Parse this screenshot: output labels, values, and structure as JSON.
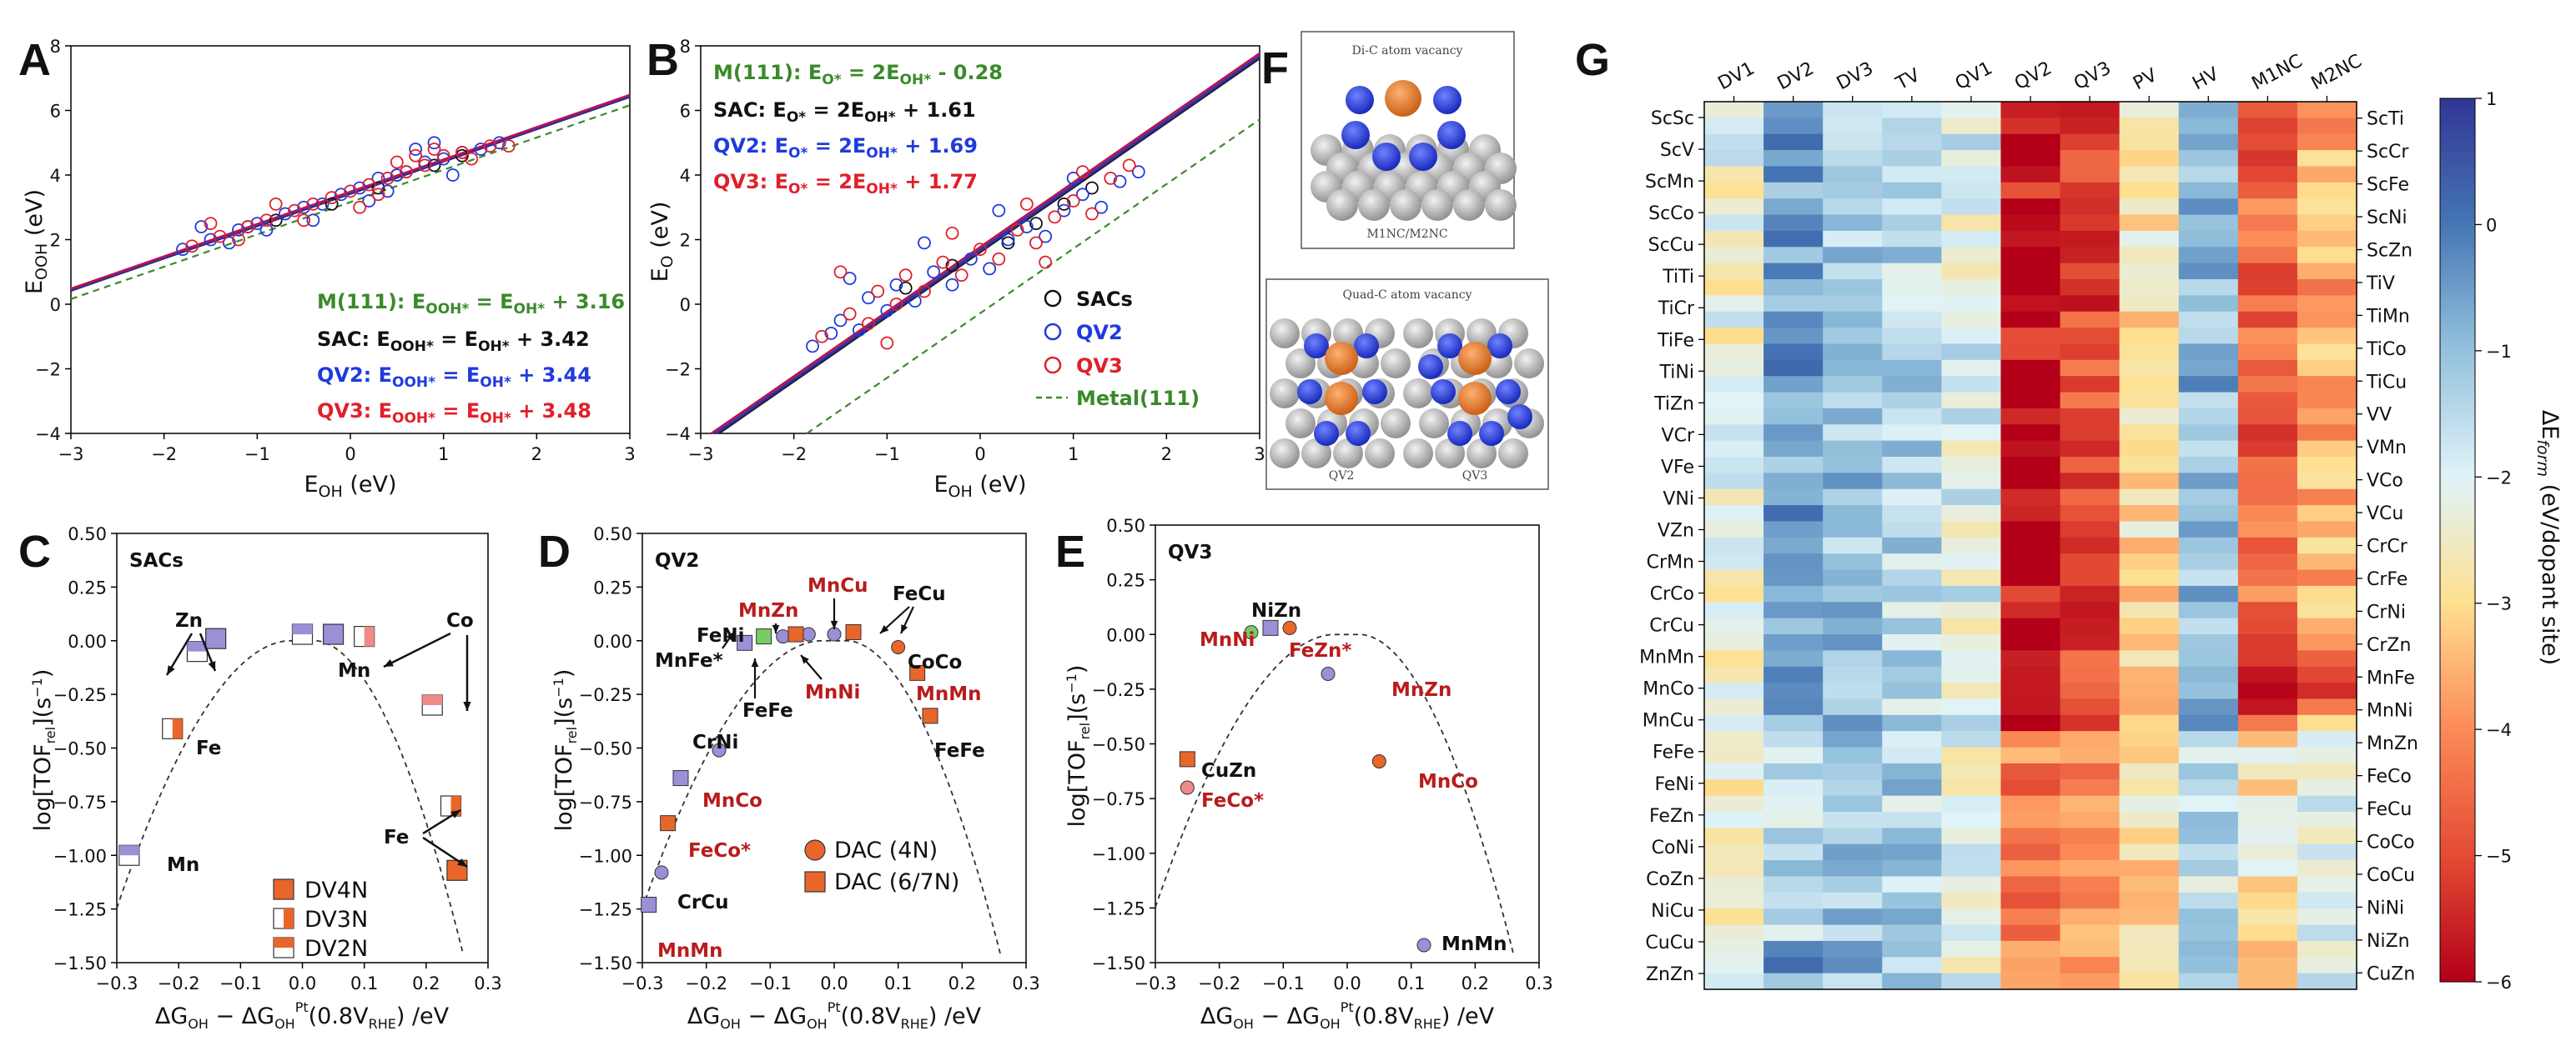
{
  "panel_labels": {
    "A": "A",
    "B": "B",
    "C": "C",
    "D": "D",
    "E": "E",
    "F": "F",
    "G": "G"
  },
  "colors": {
    "sac": "#111111",
    "qv2": "#1f3bdc",
    "qv3": "#e0202a",
    "metal": "#3a8a2a",
    "line_sac": "#222244",
    "line_qv2": "#3030b0",
    "line_qv3": "#c0104a",
    "purple": "#9b8fd6",
    "orange": "#e8662a"
  },
  "panelA": {
    "xlabel": "E_OH (eV)",
    "ylabel": "E_OOH (eV)",
    "xticks": [
      "−3",
      "−2",
      "−1",
      "0",
      "1",
      "2",
      "3"
    ],
    "yticks": [
      "−4",
      "−2",
      "0",
      "2",
      "4",
      "6",
      "8"
    ],
    "eq_metal": "M(111): E",
    "eq_metal_sub": "OOH*",
    "eq_metal_rest": " = E",
    "eq_metal_sub2": "OH*",
    "eq_metal_tail": " + 3.16",
    "eq_sac_head": "SAC: E",
    "eq_sac_tail": " + 3.42",
    "eq_qv2_head": "QV2: E",
    "eq_qv2_tail": " + 3.44",
    "eq_qv3_head": "QV3: E",
    "eq_qv3_tail": " + 3.48"
  },
  "panelB": {
    "xlabel": "E_OH (eV)",
    "ylabel": "E_O (eV)",
    "xticks": [
      "−3",
      "−2",
      "−1",
      "0",
      "1",
      "2",
      "3"
    ],
    "yticks": [
      "−4",
      "−2",
      "0",
      "2",
      "4",
      "6",
      "8"
    ],
    "eq_metal_head": "M(111): E",
    "eq_metal_tail": " - 0.28",
    "eq_sac_head": "SAC: E",
    "eq_sac_tail": " + 1.61",
    "eq_qv2_head": "QV2: E",
    "eq_qv2_tail": " + 1.69",
    "eq_qv3_head": "QV3: E",
    "eq_qv3_tail": " + 1.77",
    "legend": [
      "SACs",
      "QV2",
      "QV3",
      "Metal(111)"
    ]
  },
  "panelC": {
    "title": "SACs",
    "xlabel": "ΔG_OH − ΔG_OH^Pt(0.8V_RHE) /eV",
    "ylabel": "log[TOF_rel](s⁻¹)",
    "xticks": [
      "−0.3",
      "−0.2",
      "−0.1",
      "0.0",
      "0.1",
      "0.2",
      "0.3"
    ],
    "yticks": [
      "0.50",
      "0.25",
      "0.00",
      "−0.25",
      "−0.50",
      "−0.75",
      "−1.00",
      "−1.25",
      "−1.50"
    ],
    "labels": {
      "zn": "Zn",
      "co": "Co",
      "mn_top": "Mn",
      "fe_left": "Fe",
      "mn_left": "Mn",
      "fe_right": "Fe"
    },
    "legend": [
      "DV4N",
      "DV3N",
      "DV2N"
    ]
  },
  "panelD": {
    "title": "QV2",
    "xlabel": "ΔG_OH − ΔG_OH^Pt(0.8V_RHE) /eV",
    "ylabel": "log[TOF_rel](s⁻¹)",
    "xticks": [
      "−0.3",
      "−0.2",
      "−0.1",
      "0.0",
      "0.1",
      "0.2",
      "0.3"
    ],
    "yticks": [
      "0.50",
      "0.25",
      "0.00",
      "−0.25",
      "−0.50",
      "−0.75",
      "−1.00",
      "−1.25",
      "−1.50"
    ],
    "labels": {
      "mncu": "MnCu",
      "fecu": "FeCu",
      "mnzn": "MnZn",
      "feni": "FeNi",
      "mnfe": "MnFe*",
      "feFe_low": "FeFe",
      "mnni": "MnNi",
      "coco": "CoCo",
      "mnmn_r": "MnMn",
      "fefe_r": "FeFe",
      "crni": "CrNi",
      "mnco": "MnCo",
      "feco": "FeCo*",
      "crcu": "CrCu",
      "mnmn_l": "MnMn"
    },
    "legend": [
      "DAC (4N)",
      "DAC (6/7N)"
    ]
  },
  "panelE": {
    "title": "QV3",
    "xlabel": "ΔG_OH − ΔG_OH^Pt(0.8V_RHE) /eV",
    "ylabel": "log[TOF_rel](s⁻¹)",
    "xticks": [
      "−0.3",
      "−0.2",
      "−0.1",
      "0.0",
      "0.1",
      "0.2",
      "0.3"
    ],
    "yticks": [
      "0.50",
      "0.25",
      "0.00",
      "−0.25",
      "−0.50",
      "−0.75",
      "−1.00",
      "−1.25",
      "−1.50"
    ],
    "labels": {
      "nizn": "NiZn",
      "mnni": "MnNi",
      "fezn": "FeZn*",
      "mnzn": "MnZn",
      "cuzn": "CuZn",
      "mnco": "MnCo",
      "feco": "FeCo*",
      "mnmn": "MnMn"
    }
  },
  "panelF": {
    "top_title": "Di-C atom vacancy",
    "top_caption": "M1NC/M2NC",
    "bot_title": "Quad-C atom vacancy",
    "cap_qv2": "QV2",
    "cap_qv3": "QV3"
  },
  "chart_data": [
    {
      "type": "scatter",
      "panel": "A",
      "xlabel": "E_OH (eV)",
      "ylabel": "E_OOH (eV)",
      "xlim": [
        -3,
        3
      ],
      "ylim": [
        -4,
        8
      ],
      "fits": [
        {
          "name": "M(111)",
          "slope": 1,
          "intercept": 3.16
        },
        {
          "name": "SAC",
          "slope": 1,
          "intercept": 3.42
        },
        {
          "name": "QV2",
          "slope": 1,
          "intercept": 3.44
        },
        {
          "name": "QV3",
          "slope": 1,
          "intercept": 3.48
        }
      ],
      "series": [
        {
          "name": "SAC",
          "points": [
            [
              -0.2,
              3.1
            ],
            [
              0.3,
              3.6
            ],
            [
              -0.8,
              2.6
            ],
            [
              0.9,
              4.3
            ],
            [
              1.2,
              4.6
            ],
            [
              -1.1,
              2.4
            ],
            [
              0.5,
              4.0
            ]
          ]
        },
        {
          "name": "QV2",
          "points": [
            [
              -1.8,
              1.7
            ],
            [
              -1.5,
              2.0
            ],
            [
              -1.2,
              2.3
            ],
            [
              -1.0,
              2.5
            ],
            [
              -0.7,
              2.8
            ],
            [
              -0.5,
              3.0
            ],
            [
              -0.3,
              3.1
            ],
            [
              -0.1,
              3.4
            ],
            [
              0.1,
              3.6
            ],
            [
              0.3,
              3.9
            ],
            [
              0.5,
              4.0
            ],
            [
              0.6,
              4.1
            ],
            [
              0.8,
              4.4
            ],
            [
              1.0,
              4.5
            ],
            [
              1.2,
              4.7
            ],
            [
              1.4,
              4.8
            ],
            [
              1.6,
              5.0
            ],
            [
              -1.6,
              2.4
            ],
            [
              -0.9,
              2.3
            ],
            [
              0.2,
              3.2
            ],
            [
              0.7,
              4.8
            ],
            [
              1.1,
              4.0
            ],
            [
              -0.4,
              2.6
            ],
            [
              -1.3,
              1.9
            ],
            [
              0.9,
              5.0
            ],
            [
              0.4,
              3.5
            ]
          ]
        },
        {
          "name": "QV3",
          "points": [
            [
              -1.7,
              1.8
            ],
            [
              -1.4,
              2.1
            ],
            [
              -1.1,
              2.4
            ],
            [
              -0.9,
              2.6
            ],
            [
              -0.6,
              2.9
            ],
            [
              -0.4,
              3.1
            ],
            [
              -0.2,
              3.3
            ],
            [
              0.0,
              3.5
            ],
            [
              0.2,
              3.7
            ],
            [
              0.4,
              3.9
            ],
            [
              0.6,
              4.1
            ],
            [
              0.8,
              4.3
            ],
            [
              1.0,
              4.6
            ],
            [
              1.2,
              4.7
            ],
            [
              1.5,
              4.9
            ],
            [
              1.7,
              4.9
            ],
            [
              -1.2,
              2.0
            ],
            [
              -0.5,
              2.6
            ],
            [
              0.1,
              3.0
            ],
            [
              0.5,
              4.4
            ],
            [
              0.9,
              4.8
            ],
            [
              -0.8,
              3.1
            ],
            [
              0.3,
              3.4
            ],
            [
              1.3,
              4.5
            ],
            [
              -1.5,
              2.5
            ],
            [
              0.7,
              4.6
            ]
          ]
        }
      ]
    },
    {
      "type": "scatter",
      "panel": "B",
      "xlabel": "E_OH (eV)",
      "ylabel": "E_O (eV)",
      "xlim": [
        -3,
        3
      ],
      "ylim": [
        -4,
        8
      ],
      "fits": [
        {
          "name": "M(111)",
          "slope": 2,
          "intercept": -0.28
        },
        {
          "name": "SAC",
          "slope": 2,
          "intercept": 1.61
        },
        {
          "name": "QV2",
          "slope": 2,
          "intercept": 1.69
        },
        {
          "name": "QV3",
          "slope": 2,
          "intercept": 1.77
        }
      ],
      "series": [
        {
          "name": "SACs",
          "points": [
            [
              -0.8,
              0.5
            ],
            [
              0.3,
              1.9
            ],
            [
              0.9,
              3.1
            ],
            [
              1.2,
              3.6
            ],
            [
              -0.3,
              1.2
            ],
            [
              0.6,
              2.5
            ]
          ]
        },
        {
          "name": "QV2",
          "points": [
            [
              -1.8,
              -1.3
            ],
            [
              -1.6,
              -0.9
            ],
            [
              -1.5,
              -0.5
            ],
            [
              -1.3,
              -0.8
            ],
            [
              -1.2,
              0.2
            ],
            [
              -1.0,
              -0.2
            ],
            [
              -0.9,
              0.6
            ],
            [
              -0.7,
              0.1
            ],
            [
              -0.5,
              1.0
            ],
            [
              -0.3,
              0.6
            ],
            [
              -0.1,
              1.4
            ],
            [
              0.1,
              1.1
            ],
            [
              0.3,
              2.0
            ],
            [
              0.5,
              2.4
            ],
            [
              0.7,
              2.1
            ],
            [
              0.9,
              2.9
            ],
            [
              1.1,
              3.4
            ],
            [
              1.3,
              3.0
            ],
            [
              1.5,
              3.8
            ],
            [
              1.7,
              4.1
            ],
            [
              -1.4,
              0.8
            ],
            [
              -0.6,
              1.9
            ],
            [
              0.2,
              2.9
            ],
            [
              1.0,
              3.9
            ]
          ]
        },
        {
          "name": "QV3",
          "points": [
            [
              -1.7,
              -1.0
            ],
            [
              -1.4,
              -0.3
            ],
            [
              -1.2,
              -0.6
            ],
            [
              -1.1,
              0.4
            ],
            [
              -0.9,
              0.0
            ],
            [
              -0.8,
              0.9
            ],
            [
              -0.6,
              0.4
            ],
            [
              -0.4,
              1.3
            ],
            [
              -0.2,
              0.9
            ],
            [
              0.0,
              1.7
            ],
            [
              0.2,
              1.4
            ],
            [
              0.4,
              2.3
            ],
            [
              0.6,
              1.9
            ],
            [
              0.8,
              2.7
            ],
            [
              1.0,
              3.2
            ],
            [
              1.2,
              2.8
            ],
            [
              1.4,
              3.9
            ],
            [
              1.6,
              4.3
            ],
            [
              -1.5,
              1.0
            ],
            [
              -0.3,
              2.2
            ],
            [
              0.5,
              3.1
            ],
            [
              1.1,
              4.1
            ],
            [
              0.7,
              1.3
            ],
            [
              -1.0,
              -1.2
            ]
          ]
        }
      ]
    },
    {
      "type": "scatter",
      "panel": "C",
      "title": "SACs",
      "xlabel": "ΔG_OH − ΔG_OH^Pt(0.8V_RHE) /eV",
      "ylabel": "log[TOF_rel](s⁻¹)",
      "xlim": [
        -0.3,
        0.3
      ],
      "ylim": [
        -1.5,
        0.5
      ],
      "series": [
        {
          "name": "DV4N",
          "points": [
            [
              0.25,
              -1.07
            ]
          ]
        },
        {
          "name": "DV3N",
          "points": [
            [
              -0.21,
              -0.41
            ],
            [
              0.24,
              -0.77
            ],
            [
              0.1,
              0.02
            ]
          ]
        },
        {
          "name": "DV2N",
          "points": [
            [
              -0.28,
              -1.0
            ],
            [
              -0.17,
              -0.05
            ],
            [
              0.0,
              0.03
            ],
            [
              0.21,
              -0.3
            ]
          ]
        },
        {
          "name": "Zn/Mn purple",
          "points": [
            [
              -0.14,
              0.01
            ],
            [
              0.05,
              0.03
            ],
            [
              -0.17,
              -0.05
            ]
          ]
        }
      ]
    },
    {
      "type": "scatter",
      "panel": "D",
      "title": "QV2",
      "xlabel": "ΔG_OH − ΔG_OH^Pt(0.8V_RHE) /eV",
      "ylabel": "log[TOF_rel](s⁻¹)",
      "xlim": [
        -0.3,
        0.3
      ],
      "ylim": [
        -1.5,
        0.5
      ],
      "series": [
        {
          "name": "DAC (4N)",
          "points": [
            [
              -0.27,
              -1.08
            ],
            [
              -0.18,
              -0.51
            ],
            [
              -0.08,
              0.02
            ],
            [
              -0.04,
              0.03
            ],
            [
              0.0,
              0.03
            ],
            [
              0.1,
              -0.03
            ]
          ]
        },
        {
          "name": "DAC (6/7N)",
          "points": [
            [
              -0.29,
              -1.23
            ],
            [
              -0.26,
              -0.85
            ],
            [
              -0.24,
              -0.64
            ],
            [
              -0.14,
              -0.01
            ],
            [
              -0.11,
              0.02
            ],
            [
              -0.06,
              0.03
            ],
            [
              0.03,
              0.04
            ],
            [
              0.13,
              -0.15
            ],
            [
              0.15,
              -0.35
            ]
          ]
        }
      ]
    },
    {
      "type": "scatter",
      "panel": "E",
      "title": "QV3",
      "xlabel": "ΔG_OH − ΔG_OH^Pt(0.8V_RHE) /eV",
      "ylabel": "log[TOF_rel](s⁻¹)",
      "xlim": [
        -0.3,
        0.3
      ],
      "ylim": [
        -1.5,
        0.5
      ],
      "series": [
        {
          "name": "points",
          "points": [
            [
              -0.15,
              0.01
            ],
            [
              -0.12,
              0.03
            ],
            [
              -0.09,
              0.03
            ],
            [
              -0.03,
              -0.18
            ],
            [
              0.05,
              -0.58
            ],
            [
              -0.25,
              -0.57
            ],
            [
              -0.25,
              -0.7
            ],
            [
              0.12,
              -1.42
            ]
          ]
        }
      ]
    },
    {
      "type": "heatmap",
      "panel": "G",
      "columns": [
        "DV1",
        "DV2",
        "DV3",
        "TV",
        "QV1",
        "QV2",
        "QV3",
        "PV",
        "HV",
        "M1NC",
        "M2NC"
      ],
      "rows_left": [
        "ScSc",
        "ScV",
        "ScMn",
        "ScCo",
        "ScCu",
        "TiTi",
        "TiCr",
        "TiFe",
        "TiNi",
        "TiZn",
        "VCr",
        "VFe",
        "VNi",
        "VZn",
        "CrMn",
        "CrCo",
        "CrCu",
        "MnMn",
        "MnCo",
        "MnCu",
        "FeFe",
        "FeNi",
        "FeZn",
        "CoNi",
        "CoZn",
        "NiCu",
        "CuCu",
        "ZnZn"
      ],
      "rows_right": [
        "ScTi",
        "ScCr",
        "ScFe",
        "ScNi",
        "ScZn",
        "TiV",
        "TiMn",
        "TiCo",
        "TiCu",
        "VV",
        "VMn",
        "VCo",
        "VCu",
        "CrCr",
        "CrFe",
        "CrNi",
        "CrZn",
        "MnFe",
        "MnNi",
        "MnZn",
        "FeCo",
        "FeCu",
        "CoCo",
        "CoCu",
        "NiNi",
        "NiZn",
        "CuZn"
      ],
      "colorbar_label": "ΔE_form (eV/dopant site)",
      "colorbar_range": [
        -6,
        1
      ],
      "colorbar_ticks": [
        "1",
        "0",
        "−1",
        "−2",
        "−3",
        "−4",
        "−5",
        "−6"
      ],
      "column_means": [
        -2.3,
        -0.6,
        -1.1,
        -1.4,
        -2.0,
        -5.6,
        -5.0,
        -2.9,
        -0.9,
        -4.6,
        -3.6
      ]
    }
  ]
}
